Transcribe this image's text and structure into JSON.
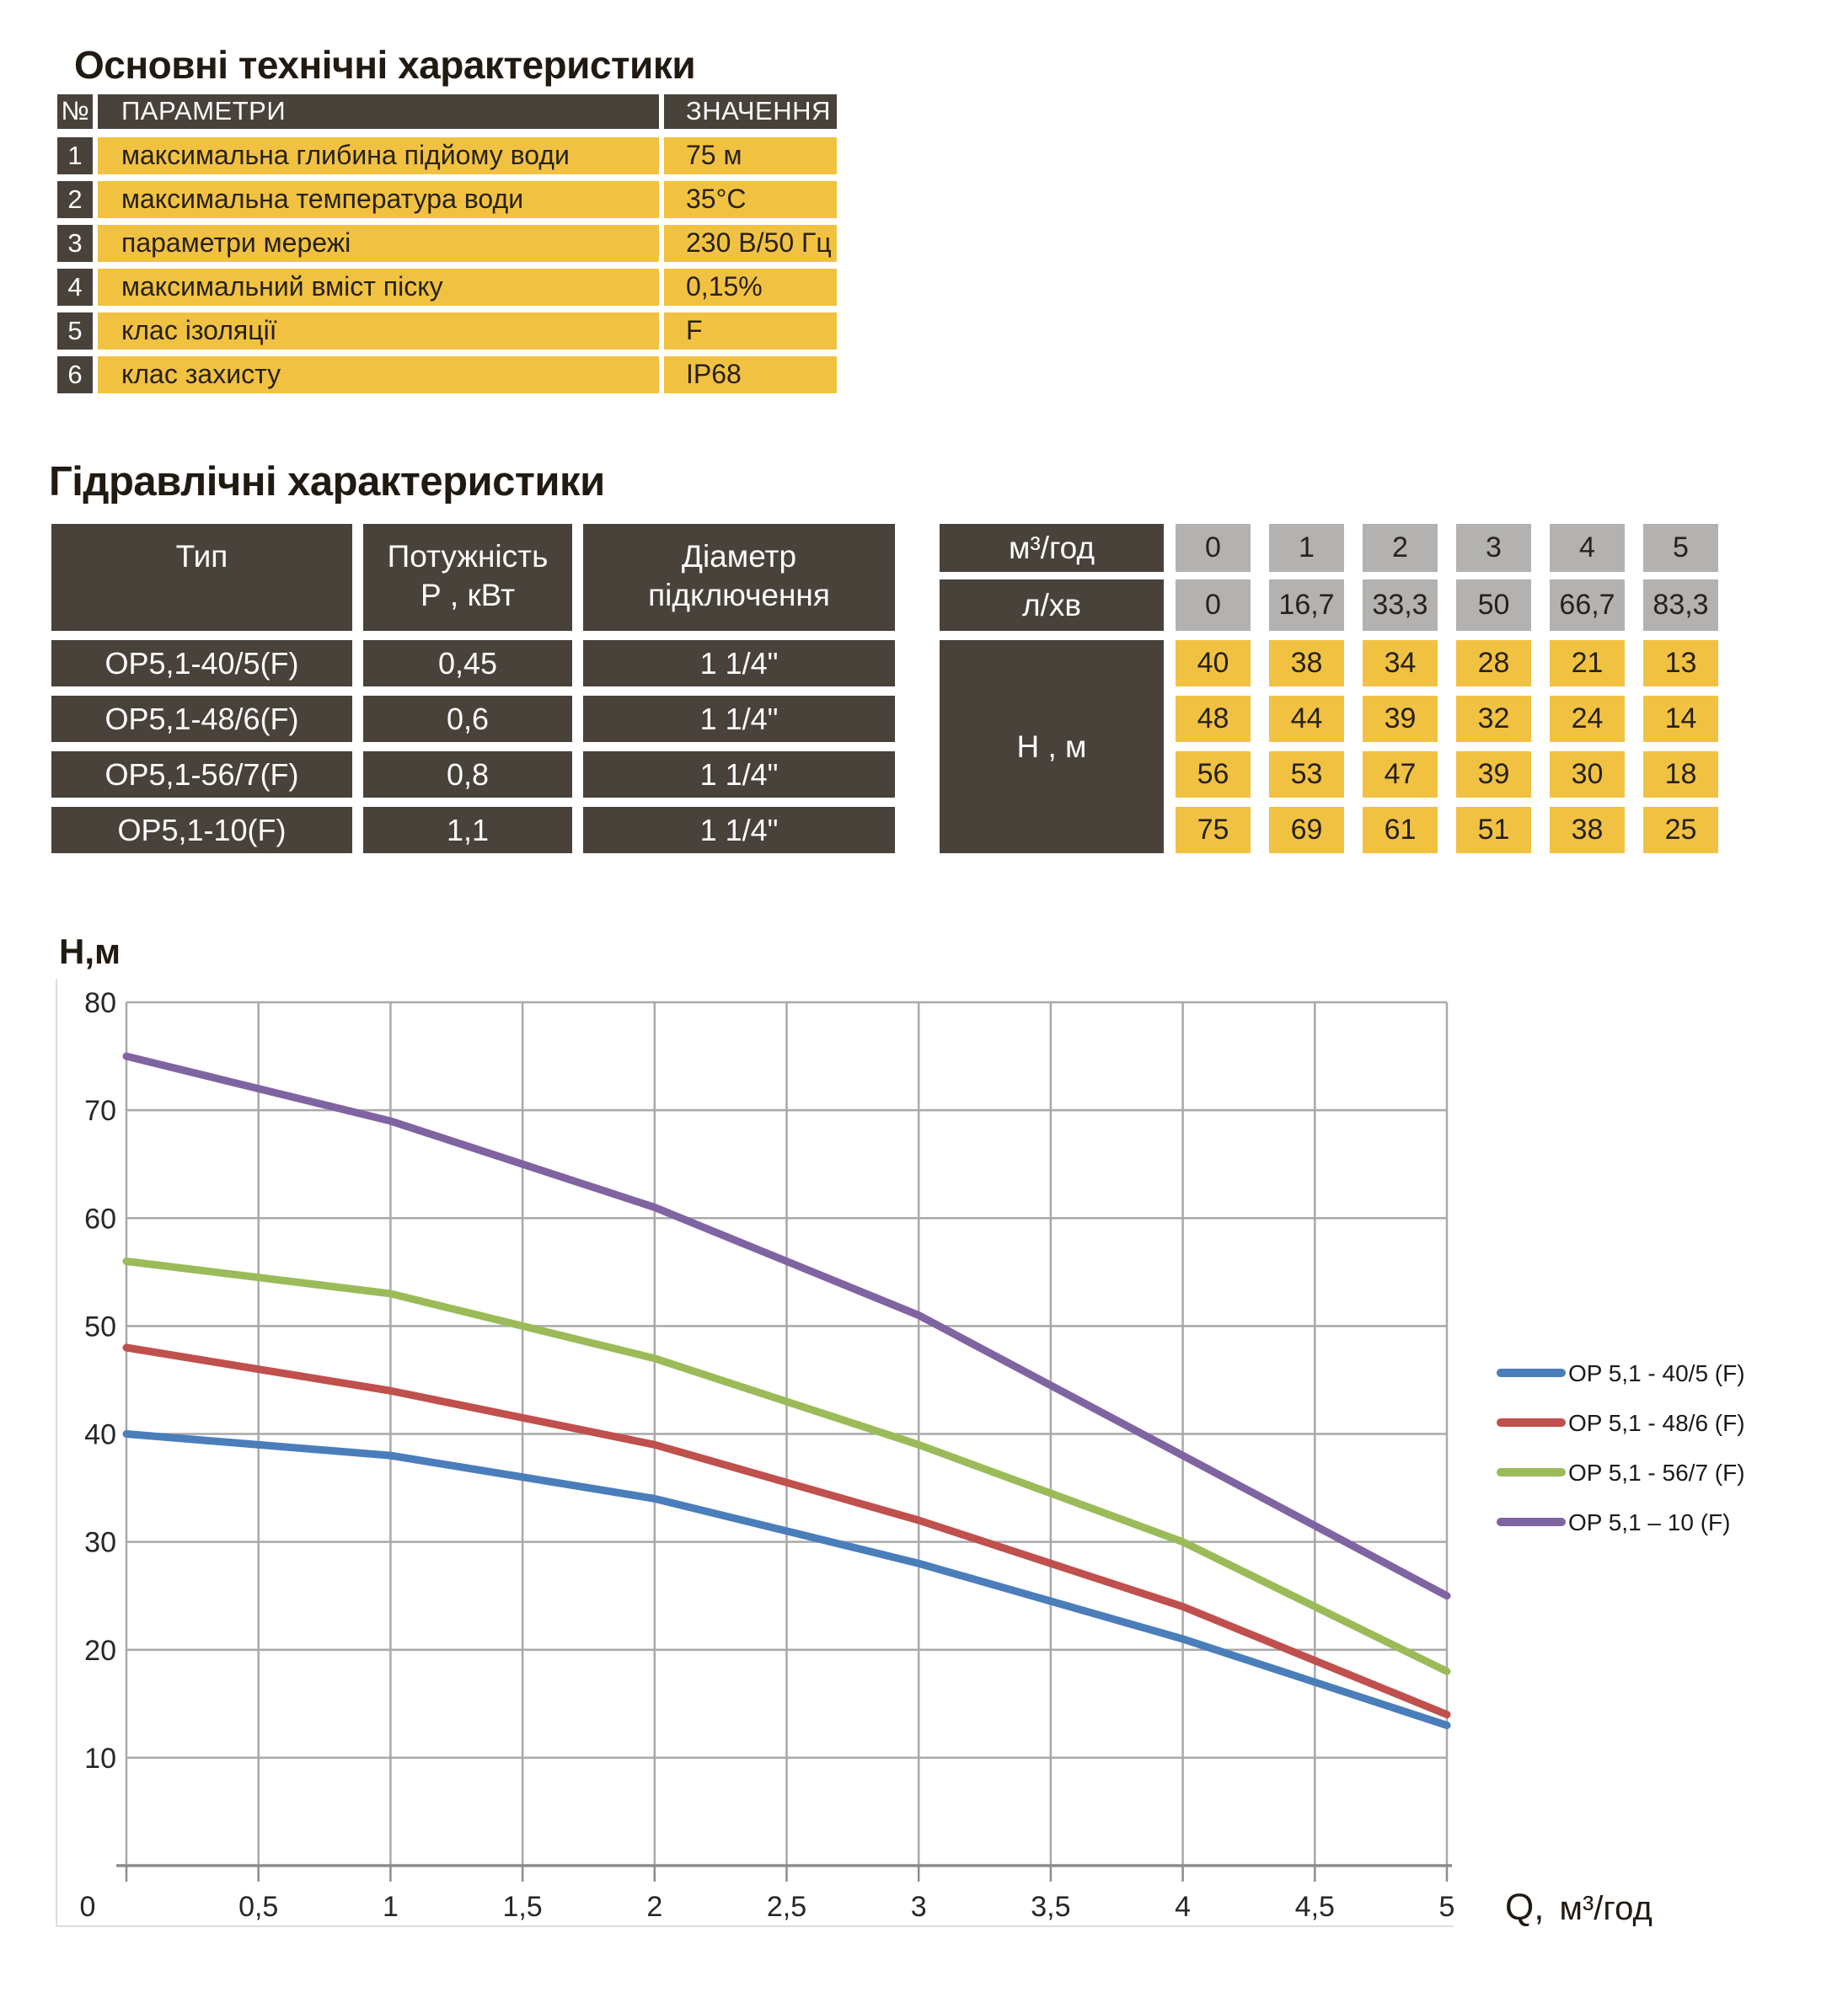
{
  "titles": {
    "main": "Основні технічні характеристики",
    "hydraulic": "Гідравлічні характеристики"
  },
  "table1": {
    "headers": {
      "num": "№",
      "param": "ПАРАМЕТРИ",
      "value": "ЗНАЧЕННЯ"
    },
    "rows": [
      {
        "num": "1",
        "param": "максимальна глибина підйому води",
        "value": "75 м"
      },
      {
        "num": "2",
        "param": "максимальна температура води",
        "value": "35°С"
      },
      {
        "num": "3",
        "param": "параметри мережі",
        "value": "230 В/50 Гц"
      },
      {
        "num": "4",
        "param": "максимальний вміст піску",
        "value": "0,15%"
      },
      {
        "num": "5",
        "param": "клас ізоляції",
        "value": "F"
      },
      {
        "num": "6",
        "param": "клас захисту",
        "value": "IP68"
      }
    ]
  },
  "table2": {
    "col_headers": {
      "type": "Тип",
      "power_line1": "Потужність",
      "power_line2": "Р , кВт",
      "diameter_line1": "Діаметр",
      "diameter_line2": "підключення",
      "flow_m3": "м³/год",
      "flow_lmin": "л/хв",
      "head": "Н , м"
    },
    "flow_m3_values": [
      "0",
      "1",
      "2",
      "3",
      "4",
      "5"
    ],
    "flow_lmin_values": [
      "0",
      "16,7",
      "33,3",
      "50",
      "66,7",
      "83,3"
    ],
    "rows": [
      {
        "type": "ОР5,1-40/5(F)",
        "power": "0,45",
        "diameter": "1 1/4\"",
        "head_values": [
          "40",
          "38",
          "34",
          "28",
          "21",
          "13"
        ]
      },
      {
        "type": "ОР5,1-48/6(F)",
        "power": "0,6",
        "diameter": "1 1/4\"",
        "head_values": [
          "48",
          "44",
          "39",
          "32",
          "24",
          "14"
        ]
      },
      {
        "type": "ОР5,1-56/7(F)",
        "power": "0,8",
        "diameter": "1 1/4\"",
        "head_values": [
          "56",
          "53",
          "47",
          "39",
          "30",
          "18"
        ]
      },
      {
        "type": "ОР5,1-10(F)",
        "power": "1,1",
        "diameter": "1 1/4\"",
        "head_values": [
          "75",
          "69",
          "61",
          "51",
          "38",
          "25"
        ]
      }
    ]
  },
  "chart_data": {
    "type": "line",
    "title": "",
    "ylabel": "Н,м",
    "xlabel": "Q, м³/год",
    "x": [
      0,
      1,
      2,
      3,
      4,
      5
    ],
    "series": [
      {
        "name": "OP 5,1 - 40/5 (F)",
        "color": "#4a7ebb",
        "values": [
          40,
          38,
          34,
          28,
          21,
          13
        ]
      },
      {
        "name": "OP 5,1 - 48/6 (F)",
        "color": "#c0504d",
        "values": [
          48,
          44,
          39,
          32,
          24,
          14
        ]
      },
      {
        "name": "OP 5,1 - 56/7 (F)",
        "color": "#9bbb59",
        "values": [
          56,
          53,
          47,
          39,
          30,
          18
        ]
      },
      {
        "name": "OP 5,1 – 10 (F)",
        "color": "#8064a2",
        "values": [
          75,
          69,
          61,
          51,
          38,
          25
        ]
      }
    ],
    "xticks": {
      "values": [
        0,
        0.5,
        1,
        1.5,
        2,
        2.5,
        3,
        3.5,
        4,
        4.5,
        5
      ],
      "labels": [
        "0",
        "0,5",
        "1",
        "1,5",
        "2",
        "2,5",
        "3",
        "3,5",
        "4",
        "4,5",
        "5"
      ]
    },
    "yticks": {
      "values": [
        0,
        10,
        20,
        30,
        40,
        50,
        60,
        70,
        80
      ],
      "labels": [
        "0",
        "10",
        "20",
        "30",
        "40",
        "50",
        "60",
        "70",
        "80"
      ]
    },
    "xlim": [
      0,
      5
    ],
    "ylim": [
      0,
      80
    ],
    "grid": true,
    "legend_position": "right"
  },
  "colors": {
    "dark_cell": "#48423b",
    "yellow_cell": "#f1c242",
    "gray_cell": "#b3b2b0",
    "grid": "#a9a9a9",
    "axis": "#8c8c8c",
    "text_dark": "#27211a",
    "title": "#211a12"
  }
}
